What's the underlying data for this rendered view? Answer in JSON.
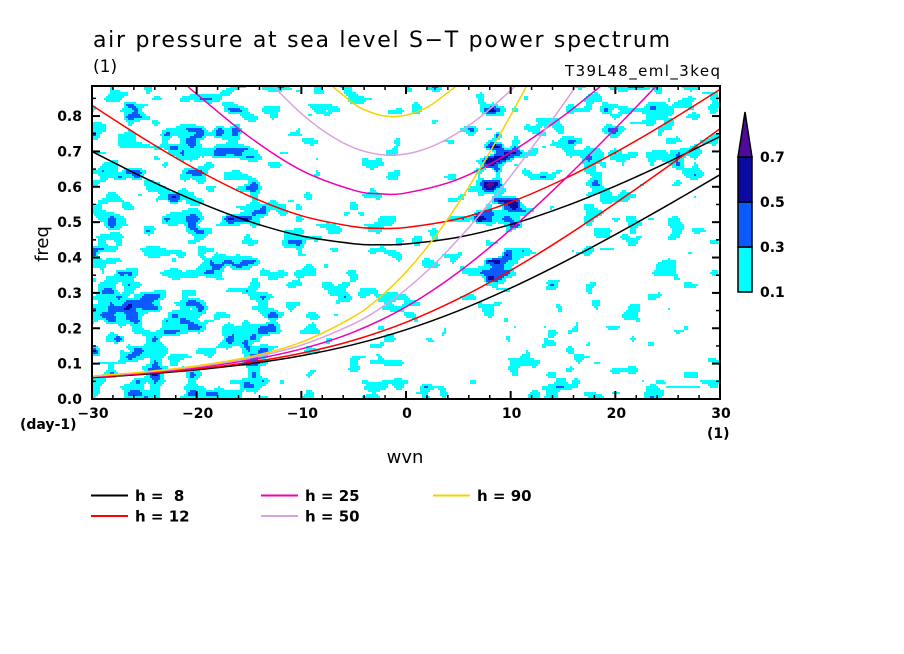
{
  "chart_data": {
    "type": "line",
    "title": "air pressure at sea level S−T power spectrum",
    "subtitle_left": "(1)",
    "subtitle_right": "T39L48_eml_3keq",
    "xlabel": "wvn",
    "x_unit_label": "(1)",
    "ylabel": "freq",
    "y_unit_label": "(day-1)",
    "xlim": [
      -30,
      30
    ],
    "ylim": [
      0,
      0.885
    ],
    "x_ticks": [
      -30,
      -20,
      -10,
      0,
      10,
      20,
      30
    ],
    "x_tick_labels": [
      "−30",
      "−20",
      "−10",
      "0",
      "10",
      "20",
      "30"
    ],
    "x_minor_step": 2,
    "y_ticks": [
      0,
      0.1,
      0.2,
      0.3,
      0.4,
      0.5,
      0.6,
      0.7,
      0.8
    ],
    "y_tick_labels": [
      "0.0",
      "0.1",
      "0.2",
      "0.3",
      "0.4",
      "0.5",
      "0.6",
      "0.7",
      "0.8"
    ],
    "y_minor_step": 0.05,
    "grid": false,
    "legend_position": "bottom-left",
    "series": [
      {
        "name": "h =  8",
        "h": 8,
        "color": "#000000",
        "branches": [
          {
            "name": "lower",
            "x": [
              -30,
              -25,
              -20,
              -15,
              -10,
              -5,
              0,
              5,
              10,
              15,
              20,
              25,
              30
            ],
            "y": [
              0.0605,
              0.0701,
              0.0826,
              0.0994,
              0.1224,
              0.1539,
              0.196,
              0.2495,
              0.3136,
              0.3862,
              0.465,
              0.548,
              0.6342
            ]
          },
          {
            "name": "upper",
            "x": [
              -30,
              -25,
              -20,
              -15,
              -10,
              -5,
              -2.5,
              0,
              5,
              10,
              15,
              20,
              25,
              30
            ],
            "y": [
              0.6997,
              0.6254,
              0.5585,
              0.5023,
              0.4611,
              0.4391,
              0.436,
              0.4382,
              0.4574,
              0.4934,
              0.5427,
              0.6022,
              0.6693,
              0.7421
            ]
          }
        ]
      },
      {
        "name": "h = 12",
        "h": 12,
        "color": "#FF0000",
        "branches": [
          {
            "name": "lower",
            "x": [
              -30,
              -25,
              -20,
              -15,
              -10,
              -5,
              0,
              5,
              10,
              15,
              20,
              25,
              30
            ],
            "y": [
              0.0616,
              0.0716,
              0.085,
              0.1034,
              0.1294,
              0.1661,
              0.2169,
              0.2832,
              0.3636,
              0.4547,
              0.5534,
              0.6571,
              0.7642
            ]
          },
          {
            "name": "upper",
            "x": [
              -30,
              -25,
              -20,
              -15,
              -10,
              -5,
              -2.5,
              0,
              5,
              10,
              15,
              20,
              25,
              30
            ],
            "y": [
              0.8301,
              0.7352,
              0.6485,
              0.5743,
              0.5184,
              0.4875,
              0.4826,
              0.4849,
              0.5096,
              0.5566,
              0.6206,
              0.6972,
              0.783,
              0.8755
            ]
          }
        ]
      },
      {
        "name": "h = 25",
        "h": 25,
        "color": "#F000B4",
        "branches": [
          {
            "name": "lower",
            "x": [
              -30,
              -25,
              -20,
              -15,
              -10,
              -5,
              0,
              5,
              10,
              15,
              20,
              23.91
            ],
            "y": [
              0.063,
              0.0739,
              0.0888,
              0.11,
              0.1416,
              0.1894,
              0.2605,
              0.3584,
              0.4796,
              0.617,
              0.7648,
              0.885
            ]
          },
          {
            "name": "upper",
            "x": [
              -20.88,
              -20,
              -15,
              -10,
              -5,
              -2.5,
              0,
              5,
              10,
              15,
              18.61
            ],
            "y": [
              0.885,
              0.8621,
              0.7417,
              0.6467,
              0.5904,
              0.5803,
              0.5826,
              0.6216,
              0.6975,
              0.7997,
              0.885
            ]
          }
        ]
      },
      {
        "name": "h = 50",
        "h": 50,
        "color": "#DCA0DC",
        "branches": [
          {
            "name": "lower",
            "x": [
              -30,
              -25,
              -20,
              -15,
              -10,
              -5,
              -2.5,
              0,
              2.5,
              5,
              7.5,
              10,
              12.5,
              15,
              16.25
            ],
            "y": [
              0.0641,
              0.0756,
              0.0916,
              0.1153,
              0.1523,
              0.2126,
              0.2558,
              0.3098,
              0.3753,
              0.4516,
              0.5372,
              0.6303,
              0.7292,
              0.8323,
              0.885
            ]
          },
          {
            "name": "upper",
            "x": [
              -12.71,
              -10,
              -7.5,
              -5,
              -2.5,
              0,
              2.5,
              5,
              7.5,
              10,
              10.44
            ],
            "y": [
              0.885,
              0.8072,
              0.7503,
              0.7105,
              0.6912,
              0.6928,
              0.7145,
              0.7534,
              0.807,
              0.8724,
              0.885
            ]
          }
        ]
      },
      {
        "name": "h = 90",
        "h": 90,
        "color": "#F5D200",
        "branches": [
          {
            "name": "lower",
            "x": [
              -30,
              -25,
              -20,
              -15,
              -10,
              -5,
              -2.5,
              0,
              2.5,
              5,
              7.5,
              10,
              11.53
            ],
            "y": [
              0.0648,
              0.0767,
              0.0936,
              0.1191,
              0.1606,
              0.2328,
              0.2876,
              0.3589,
              0.4479,
              0.5534,
              0.6725,
              0.8019,
              0.885
            ]
          },
          {
            "name": "upper",
            "x": [
              -7.063,
              -5,
              -4,
              -2.5,
              -1.25,
              0,
              1.25,
              2.5,
              4.793
            ],
            "y": [
              0.885,
              0.8351,
              0.8183,
              0.8026,
              0.7984,
              0.8025,
              0.8144,
              0.8335,
              0.885
            ]
          }
        ]
      }
    ],
    "contour": {
      "type": "filled-contour",
      "levels": [
        0.1,
        0.3,
        0.5,
        0.7
      ],
      "level_labels": [
        "0.1",
        "0.3",
        "0.5",
        "0.7"
      ],
      "colors": [
        "#00FFFF",
        "#0A5AFF",
        "#0A0AA0",
        "#500A9B"
      ],
      "extend": "max",
      "colorbar_position": "right"
    }
  }
}
